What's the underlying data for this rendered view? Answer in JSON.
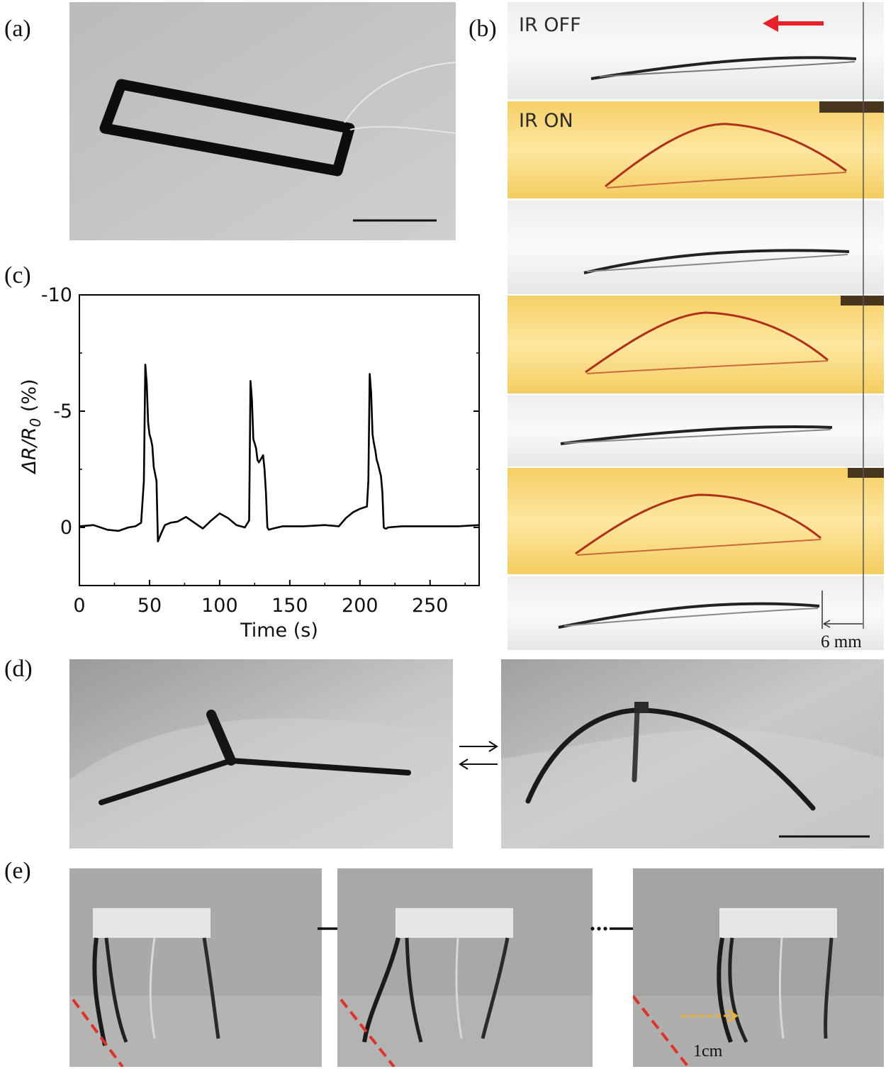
{
  "panels": {
    "a": {
      "label": "(a)"
    },
    "b": {
      "label": "(b)",
      "frames": [
        {
          "state": "IR OFF",
          "label": "IR OFF"
        },
        {
          "state": "IR ON",
          "label": "IR ON"
        },
        {
          "state": "IR OFF",
          "label": ""
        },
        {
          "state": "IR ON",
          "label": ""
        },
        {
          "state": "IR OFF",
          "label": ""
        },
        {
          "state": "IR ON",
          "label": ""
        },
        {
          "state": "IR OFF",
          "label": ""
        }
      ],
      "scale_label": "6 mm",
      "arrow_color": "#e8202a"
    },
    "c": {
      "label": "(c)"
    },
    "d": {
      "label": "(d)"
    },
    "e": {
      "label": "(e)",
      "scale_label": "1cm",
      "dash_color": "#e0302a",
      "arrow_color": "#f0b030"
    }
  },
  "chart_data": {
    "type": "line",
    "title": "",
    "xlabel": "Time (s)",
    "ylabel": "ΔR/R0 (%)",
    "xlim": [
      0,
      285
    ],
    "ylim": [
      2.5,
      -10
    ],
    "y_inverted": true,
    "xticks": [
      0,
      50,
      100,
      150,
      200,
      250
    ],
    "xtick_labels": [
      "0",
      "50",
      "100",
      "150",
      "200",
      "250"
    ],
    "yticks": [
      -10,
      -5,
      0
    ],
    "ytick_labels": [
      "-10",
      "-5",
      "0"
    ],
    "series": [
      {
        "x": [
          0,
          10,
          20,
          28,
          35,
          40,
          44,
          46,
          47,
          48,
          49,
          50,
          51,
          52,
          53,
          55,
          56,
          58,
          61,
          65,
          70,
          76,
          82,
          88,
          94,
          100,
          106,
          112,
          118,
          121,
          122,
          123,
          124,
          125,
          126,
          127,
          128,
          130,
          131,
          132,
          133,
          134,
          135,
          138,
          145,
          160,
          175,
          185,
          190,
          195,
          200,
          205,
          206,
          207,
          208,
          209,
          210,
          211,
          212,
          213,
          215,
          216,
          217,
          218,
          219,
          220,
          230,
          250,
          270,
          285
        ],
        "y": [
          -0.05,
          -0.1,
          0.1,
          0.15,
          0.0,
          -0.05,
          -0.2,
          -2.0,
          -7.0,
          -6.2,
          -4.5,
          -4.0,
          -3.8,
          -3.5,
          -2.6,
          -2.0,
          0.6,
          0.3,
          -0.1,
          -0.2,
          -0.25,
          -0.45,
          -0.2,
          0.05,
          -0.3,
          -0.6,
          -0.4,
          -0.1,
          0.0,
          -0.3,
          -6.3,
          -5.5,
          -3.8,
          -3.6,
          -3.4,
          -2.9,
          -2.8,
          -3.0,
          -3.1,
          -2.5,
          -1.5,
          0.0,
          0.1,
          0.05,
          -0.05,
          -0.05,
          -0.1,
          -0.05,
          -0.4,
          -0.65,
          -0.8,
          -0.9,
          -2.0,
          -6.6,
          -5.8,
          -4.0,
          -3.6,
          -3.3,
          -2.9,
          -2.7,
          -2.2,
          -1.5,
          0.0,
          0.05,
          0.05,
          0.0,
          -0.05,
          -0.05,
          -0.05,
          -0.1
        ]
      }
    ],
    "grid": false,
    "legend": "none"
  }
}
